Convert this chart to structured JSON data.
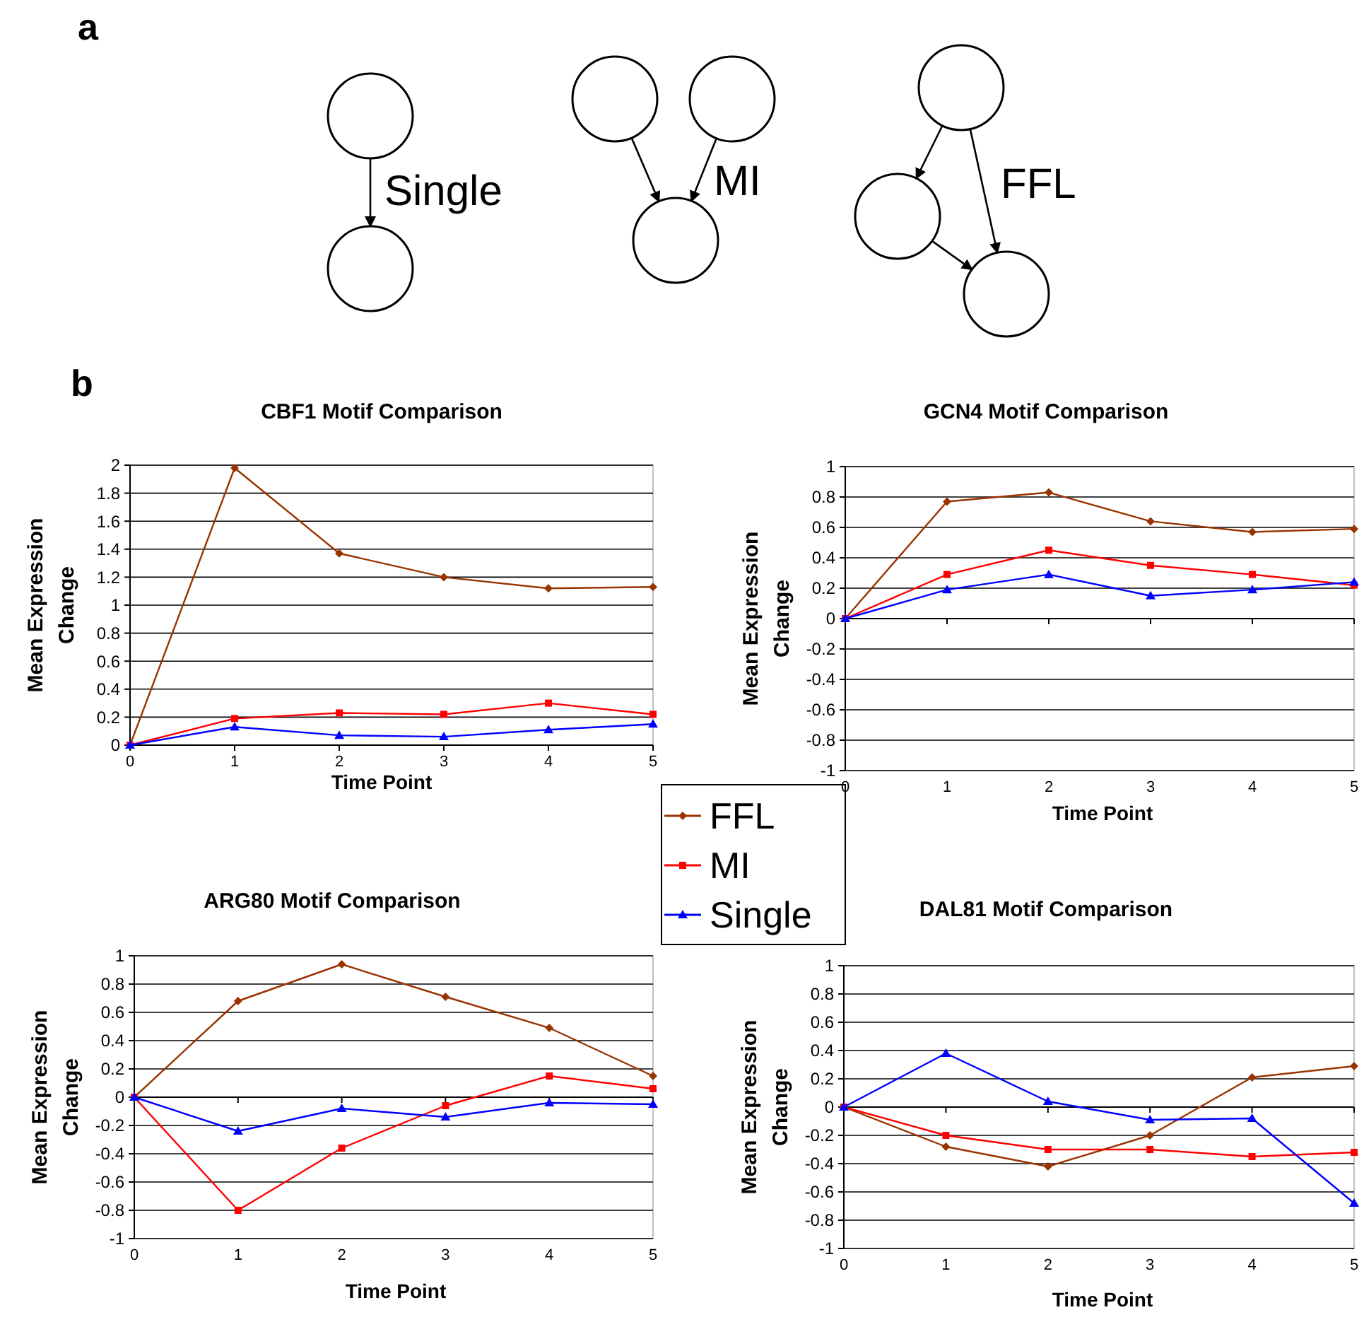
{
  "chart_data": [
    {
      "type": "other",
      "annotations": [
        "a",
        "Single",
        "MI",
        "FFL",
        "b"
      ]
    },
    {
      "type": "line",
      "title": "CBF1 Motif Comparison",
      "xlabel": "Time Point",
      "ylabel": "Mean Expression Change",
      "x": [
        0,
        1,
        2,
        3,
        4,
        5
      ],
      "xlim": [
        0,
        5
      ],
      "xticks": [
        0,
        1,
        2,
        3,
        4,
        5
      ],
      "ylim": [
        0,
        2
      ],
      "yticks": [
        0,
        0.2,
        0.4,
        0.6,
        0.8,
        1,
        1.2,
        1.4,
        1.6,
        1.8,
        2
      ],
      "grid": "y",
      "legend": "bottom right",
      "series": [
        {
          "name": "FFL",
          "color": "#993300",
          "marker": "diamond",
          "values": [
            0,
            1.98,
            1.37,
            1.2,
            1.12,
            1.13
          ]
        },
        {
          "name": "MI",
          "color": "#ff0000",
          "marker": "square",
          "values": [
            0,
            0.19,
            0.23,
            0.22,
            0.3,
            0.22
          ]
        },
        {
          "name": "Single",
          "color": "#0000ff",
          "marker": "triangle",
          "values": [
            0,
            0.13,
            0.07,
            0.06,
            0.11,
            0.15
          ]
        }
      ]
    },
    {
      "type": "line",
      "title": "GCN4 Motif Comparison",
      "xlabel": "Time Point",
      "ylabel": "Mean Expression Change",
      "x": [
        0,
        1,
        2,
        3,
        4,
        5
      ],
      "xlim": [
        0,
        5
      ],
      "xticks": [
        0,
        1,
        2,
        3,
        4,
        5
      ],
      "ylim": [
        -1,
        1
      ],
      "yticks": [
        -1,
        -0.8,
        -0.6,
        -0.4,
        -0.2,
        0,
        0.2,
        0.4,
        0.6,
        0.8,
        1
      ],
      "grid": "y",
      "series": [
        {
          "color": "#993300",
          "marker": "diamond",
          "values": [
            0,
            0.77,
            0.83,
            0.64,
            0.57,
            0.59
          ]
        },
        {
          "color": "#ff0000",
          "marker": "square",
          "values": [
            0,
            0.29,
            0.45,
            0.35,
            0.29,
            0.22
          ]
        },
        {
          "color": "#0000ff",
          "marker": "triangle",
          "values": [
            0,
            0.19,
            0.29,
            0.15,
            0.19,
            0.24
          ]
        }
      ]
    },
    {
      "type": "line",
      "title": "ARG80 Motif Comparison",
      "xlabel": "Time Point",
      "ylabel": "Mean Expression Change",
      "x": [
        0,
        1,
        2,
        3,
        4,
        5
      ],
      "xlim": [
        0,
        5
      ],
      "xticks": [
        0,
        1,
        2,
        3,
        4,
        5
      ],
      "ylim": [
        -1,
        1
      ],
      "yticks": [
        -1,
        -0.8,
        -0.6,
        -0.4,
        -0.2,
        0,
        0.2,
        0.4,
        0.6,
        0.8,
        1
      ],
      "grid": "y",
      "series": [
        {
          "color": "#993300",
          "marker": "diamond",
          "values": [
            0,
            0.68,
            0.94,
            0.71,
            0.49,
            0.15
          ]
        },
        {
          "color": "#ff0000",
          "marker": "square",
          "values": [
            0,
            -0.8,
            -0.36,
            -0.06,
            0.15,
            0.06
          ]
        },
        {
          "color": "#0000ff",
          "marker": "triangle",
          "values": [
            0,
            -0.24,
            -0.08,
            -0.14,
            -0.04,
            -0.05
          ]
        }
      ]
    },
    {
      "type": "line",
      "title": "DAL81 Motif Comparison",
      "xlabel": "Time Point",
      "ylabel": "Mean Expression Change",
      "x": [
        0,
        1,
        2,
        3,
        4,
        5
      ],
      "xlim": [
        0,
        5
      ],
      "xticks": [
        0,
        1,
        2,
        3,
        4,
        5
      ],
      "ylim": [
        -1,
        1
      ],
      "yticks": [
        -1,
        -0.8,
        -0.6,
        -0.4,
        -0.2,
        0,
        0.2,
        0.4,
        0.6,
        0.8,
        1
      ],
      "grid": "y",
      "series": [
        {
          "color": "#993300",
          "marker": "diamond",
          "values": [
            0,
            -0.28,
            -0.42,
            -0.2,
            0.21,
            0.29
          ]
        },
        {
          "color": "#ff0000",
          "marker": "square",
          "values": [
            0,
            -0.2,
            -0.3,
            -0.3,
            -0.35,
            -0.32
          ]
        },
        {
          "color": "#0000ff",
          "marker": "triangle",
          "values": [
            0,
            0.38,
            0.04,
            -0.09,
            -0.08,
            -0.68
          ]
        }
      ]
    }
  ]
}
